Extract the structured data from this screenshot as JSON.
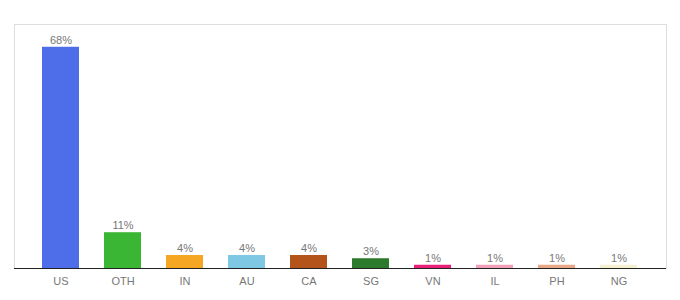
{
  "chart_data": {
    "type": "bar",
    "categories": [
      "US",
      "OTH",
      "IN",
      "AU",
      "CA",
      "SG",
      "VN",
      "IL",
      "PH",
      "NG"
    ],
    "values": [
      68,
      11,
      4,
      4,
      4,
      3,
      1,
      1,
      1,
      1
    ],
    "value_labels": [
      "68%",
      "11%",
      "4%",
      "4%",
      "4%",
      "3%",
      "1%",
      "1%",
      "1%",
      "1%"
    ],
    "colors": [
      "#4d6ee8",
      "#3ab534",
      "#f5a623",
      "#7ec8e3",
      "#b5541a",
      "#2d7a2d",
      "#e8207a",
      "#f0a0b8",
      "#e8a888",
      "#f5f0d0"
    ],
    "ylim": [
      0,
      75
    ],
    "data_labels": true,
    "tick_labels": "x",
    "grid": false
  }
}
